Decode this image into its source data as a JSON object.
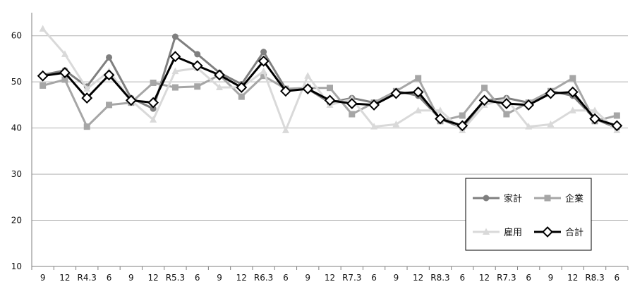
{
  "chart_data": {
    "type": "line",
    "title": "",
    "xlabel": "",
    "ylabel": "",
    "categories": [
      "9",
      "12",
      "R4.3",
      "6",
      "9",
      "12",
      "R5.3",
      "6",
      "9",
      "12",
      "R6.3",
      "6",
      "9",
      "12",
      "R7.3",
      "6",
      "9",
      "12",
      "R8.3",
      "6",
      "12",
      "R7.3",
      "6",
      "9",
      "12",
      "R8.3",
      "6"
    ],
    "ylim": [
      10,
      65
    ],
    "yticks": [
      10,
      20,
      30,
      40,
      50,
      60
    ],
    "grid": "horizontal",
    "legend_position": "bottom-right",
    "series": [
      {
        "name": "家計",
        "color": "#7f7f7f",
        "marker": "circle",
        "values": [
          51.5,
          52.5,
          49.0,
          55.3,
          46.5,
          44.2,
          59.8,
          56.0,
          52.0,
          49.5,
          56.5,
          48.5,
          48.5,
          45.5,
          46.5,
          45.5,
          48.0,
          47.0,
          42.0,
          40.0,
          46.0,
          46.5,
          45.5,
          48.0,
          47.0,
          42.0,
          40.0
        ]
      },
      {
        "name": "企業",
        "color": "#a6a6a6",
        "marker": "square",
        "values": [
          49.2,
          50.5,
          40.3,
          45.0,
          45.5,
          49.8,
          48.8,
          49.0,
          51.5,
          46.8,
          51.3,
          48.5,
          48.7,
          48.7,
          43.0,
          45.5,
          48.0,
          50.8,
          41.5,
          42.7,
          48.7,
          43.0,
          45.5,
          48.0,
          50.8,
          41.5,
          42.7
        ]
      },
      {
        "name": "雇用",
        "color": "#d9d9d9",
        "marker": "triangle",
        "values": [
          61.5,
          56.0,
          48.5,
          52.3,
          46.0,
          41.8,
          52.3,
          53.0,
          48.8,
          48.8,
          52.3,
          39.5,
          51.3,
          45.0,
          46.3,
          40.3,
          40.8,
          43.8,
          43.8,
          39.5,
          45.0,
          46.3,
          40.3,
          40.8,
          43.8,
          43.8,
          39.5
        ]
      },
      {
        "name": "合計",
        "color": "#000000",
        "marker": "diamond",
        "values": [
          51.3,
          52.0,
          46.5,
          51.5,
          46.0,
          45.5,
          55.5,
          53.5,
          51.5,
          48.8,
          54.5,
          48.0,
          48.5,
          46.0,
          45.3,
          45.0,
          47.5,
          47.8,
          42.0,
          40.5,
          46.0,
          45.3,
          45.0,
          47.5,
          47.8,
          42.0,
          40.5
        ]
      }
    ]
  }
}
